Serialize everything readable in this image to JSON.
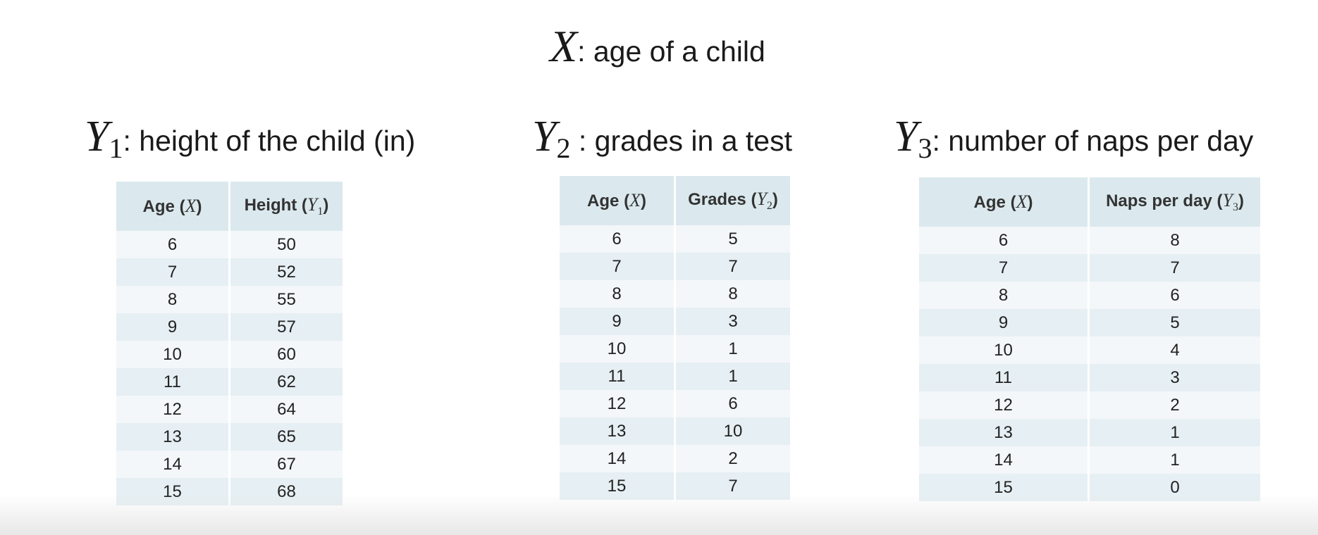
{
  "title": {
    "variable": "X",
    "text": ": age of a child"
  },
  "panels": [
    {
      "heading": {
        "variable": "Y",
        "subscript": "1",
        "text": ": height of the child (in)"
      },
      "columns": [
        {
          "label": "Age ",
          "variable": "X",
          "subscript": ""
        },
        {
          "label": "Height ",
          "variable": "Y",
          "subscript": "1"
        }
      ],
      "rows": [
        [
          "6",
          "50"
        ],
        [
          "7",
          "52"
        ],
        [
          "8",
          "55"
        ],
        [
          "9",
          "57"
        ],
        [
          "10",
          "60"
        ],
        [
          "11",
          "62"
        ],
        [
          "12",
          "64"
        ],
        [
          "13",
          "65"
        ],
        [
          "14",
          "67"
        ],
        [
          "15",
          "68"
        ]
      ]
    },
    {
      "heading": {
        "variable": "Y",
        "subscript": "2",
        "text": " : grades in a test"
      },
      "columns": [
        {
          "label": "Age ",
          "variable": "X",
          "subscript": ""
        },
        {
          "label": "Grades ",
          "variable": "Y",
          "subscript": "2"
        }
      ],
      "rows": [
        [
          "6",
          "5"
        ],
        [
          "7",
          "7"
        ],
        [
          "8",
          "8"
        ],
        [
          "9",
          "3"
        ],
        [
          "10",
          "1"
        ],
        [
          "11",
          "1"
        ],
        [
          "12",
          "6"
        ],
        [
          "13",
          "10"
        ],
        [
          "14",
          "2"
        ],
        [
          "15",
          "7"
        ]
      ]
    },
    {
      "heading": {
        "variable": "Y",
        "subscript": "3",
        "text": ": number of naps per day"
      },
      "columns": [
        {
          "label": "Age ",
          "variable": "X",
          "subscript": ""
        },
        {
          "label": "Naps per day ",
          "variable": "Y",
          "subscript": "3"
        }
      ],
      "rows": [
        [
          "6",
          "8"
        ],
        [
          "7",
          "7"
        ],
        [
          "8",
          "6"
        ],
        [
          "9",
          "5"
        ],
        [
          "10",
          "4"
        ],
        [
          "11",
          "3"
        ],
        [
          "12",
          "2"
        ],
        [
          "13",
          "1"
        ],
        [
          "14",
          "1"
        ],
        [
          "15",
          "0"
        ]
      ]
    }
  ]
}
